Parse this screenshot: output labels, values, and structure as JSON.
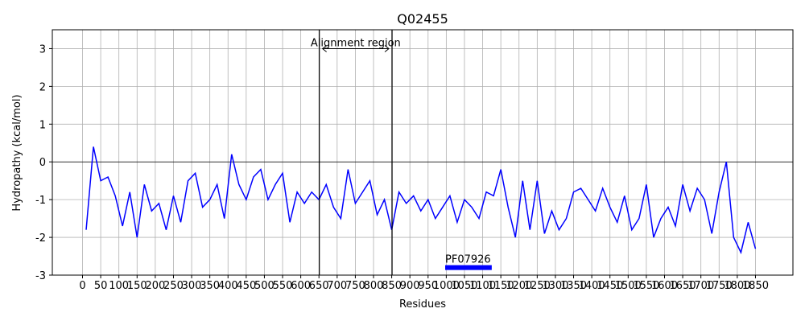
{
  "chart_data": {
    "type": "line",
    "title": "Q02455",
    "x_label": "Residues",
    "y_label": "Hydropathy (kcal/mol)",
    "x": [
      10,
      30,
      50,
      70,
      90,
      110,
      130,
      150,
      170,
      190,
      210,
      230,
      250,
      270,
      290,
      310,
      330,
      350,
      370,
      390,
      410,
      430,
      450,
      470,
      490,
      510,
      530,
      550,
      570,
      590,
      610,
      630,
      650,
      670,
      690,
      710,
      730,
      750,
      770,
      790,
      810,
      830,
      850,
      870,
      890,
      910,
      930,
      950,
      970,
      990,
      1010,
      1030,
      1050,
      1070,
      1090,
      1110,
      1130,
      1150,
      1170,
      1190,
      1210,
      1230,
      1250,
      1270,
      1290,
      1310,
      1330,
      1350,
      1370,
      1390,
      1410,
      1430,
      1450,
      1470,
      1490,
      1510,
      1530,
      1550,
      1570,
      1590,
      1610,
      1630,
      1650,
      1670,
      1690,
      1710,
      1730,
      1750,
      1770,
      1790,
      1810,
      1830,
      1850
    ],
    "series": [
      {
        "color": "#0000ff",
        "values": [
          -1.8,
          0.4,
          -0.5,
          -0.4,
          -0.9,
          -1.7,
          -0.8,
          -2.0,
          -0.6,
          -1.3,
          -1.1,
          -1.8,
          -0.9,
          -1.6,
          -0.5,
          -0.3,
          -1.2,
          -1.0,
          -0.6,
          -1.5,
          0.2,
          -0.6,
          -1.0,
          -0.4,
          -0.2,
          -1.0,
          -0.6,
          -0.3,
          -1.6,
          -0.8,
          -1.1,
          -0.8,
          -1.0,
          -0.6,
          -1.2,
          -1.5,
          -0.2,
          -1.1,
          -0.8,
          -0.5,
          -1.4,
          -1.0,
          -1.8,
          -0.8,
          -1.1,
          -0.9,
          -1.3,
          -1.0,
          -1.5,
          -1.2,
          -0.9,
          -1.6,
          -1.0,
          -1.2,
          -1.5,
          -0.8,
          -0.9,
          -0.2,
          -1.2,
          -2.0,
          -0.5,
          -1.8,
          -0.5,
          -1.9,
          -1.3,
          -1.8,
          -1.5,
          -0.8,
          -0.7,
          -1.0,
          -1.3,
          -0.7,
          -1.2,
          -1.6,
          -0.9,
          -1.8,
          -1.5,
          -0.6,
          -2.0,
          -1.5,
          -1.2,
          -1.7,
          -0.6,
          -1.3,
          -0.7,
          -1.0,
          -1.9,
          -0.8,
          0.0,
          -2.0,
          -2.4,
          -1.6,
          -2.3
        ]
      }
    ],
    "xlim": [
      -83,
      1953
    ],
    "ylim": [
      -3,
      3.5
    ],
    "xticks": [
      0,
      50,
      100,
      150,
      200,
      250,
      300,
      350,
      400,
      450,
      500,
      550,
      600,
      650,
      700,
      750,
      800,
      850,
      900,
      950,
      1000,
      1050,
      1100,
      1150,
      1200,
      1250,
      1300,
      1350,
      1400,
      1450,
      1500,
      1550,
      1600,
      1650,
      1700,
      1750,
      1800,
      1850
    ],
    "yticks": [
      -3,
      -2,
      -1,
      0,
      1,
      2,
      3
    ],
    "grid": true,
    "hline": 0,
    "alignment_region": {
      "label": "Alignment region",
      "start": 651,
      "end": 851,
      "y": 3
    },
    "domain": {
      "label": "PF07926",
      "start": 997,
      "end": 1125,
      "y": -2.8,
      "color": "#0000ff"
    }
  }
}
